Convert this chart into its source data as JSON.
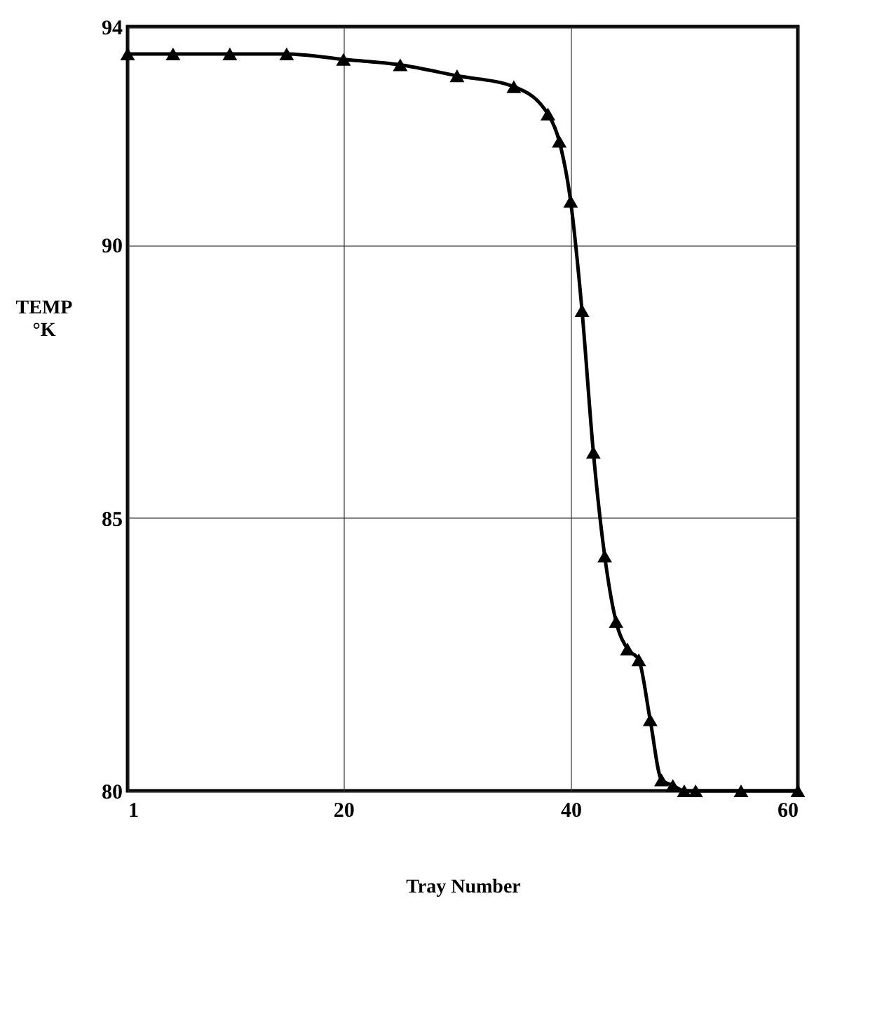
{
  "chart_data": {
    "type": "line",
    "xlabel": "Tray Number",
    "ylabel": "TEMP\n°K",
    "x": [
      1,
      5,
      10,
      15,
      20,
      25,
      30,
      35,
      38,
      39,
      40,
      41,
      42,
      43,
      44,
      45,
      46,
      47,
      48,
      49,
      50,
      51,
      55,
      60
    ],
    "series": [
      {
        "color": "#000000",
        "values": [
          93.5,
          93.5,
          93.5,
          93.5,
          93.4,
          93.3,
          93.1,
          92.9,
          92.4,
          91.9,
          90.8,
          88.8,
          86.2,
          84.3,
          83.1,
          82.6,
          82.4,
          81.3,
          80.2,
          80.1,
          80,
          80,
          80,
          80
        ]
      }
    ],
    "xlim": [
      1,
      60
    ],
    "xticks": [
      1,
      20,
      40,
      60
    ],
    "ylim": [
      80,
      94
    ],
    "yticks": [
      80,
      85,
      90,
      94
    ],
    "grid": true,
    "marker": "triangle",
    "line_style": "solid"
  }
}
